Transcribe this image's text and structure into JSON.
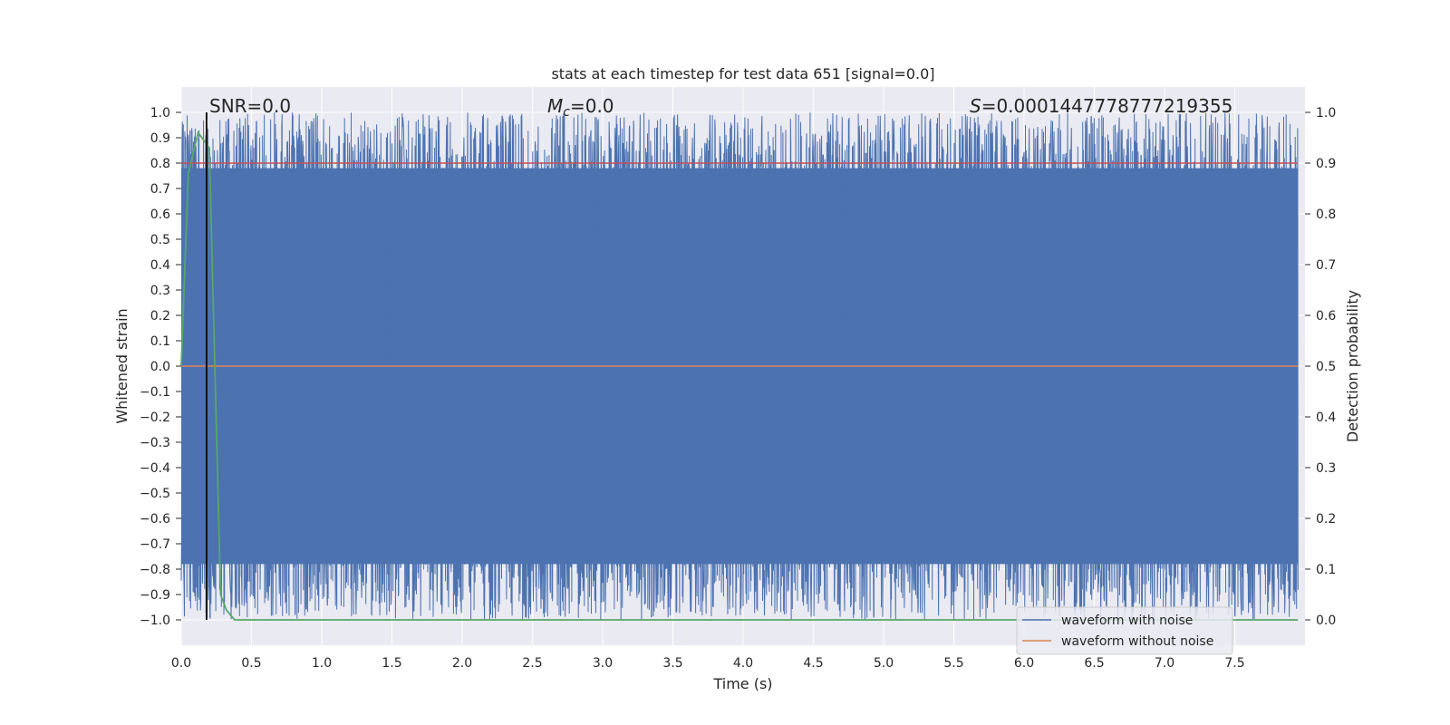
{
  "chart_data": {
    "type": "line",
    "title": "stats at each timestep for test data 651 [signal=0.0]",
    "xlabel": "Time (s)",
    "ylabel_left": "Whitened strain",
    "ylabel_right": "Detection probability",
    "xlim": [
      0.0,
      8.0
    ],
    "ylim_left": [
      -1.1,
      1.1
    ],
    "ylim_right": [
      -0.05,
      1.05
    ],
    "x_ticks": [
      0.0,
      0.5,
      1.0,
      1.5,
      2.0,
      2.5,
      3.0,
      3.5,
      4.0,
      4.5,
      5.0,
      5.5,
      6.0,
      6.5,
      7.0,
      7.5
    ],
    "x_tick_labels": [
      "0.0",
      "0.5",
      "1.0",
      "1.5",
      "2.0",
      "2.5",
      "3.0",
      "3.5",
      "4.0",
      "4.5",
      "5.0",
      "5.5",
      "6.0",
      "6.5",
      "7.0",
      "7.5"
    ],
    "y_left_ticks": [
      -1.0,
      -0.9,
      -0.8,
      -0.7,
      -0.6,
      -0.5,
      -0.4,
      -0.3,
      -0.2,
      -0.1,
      0.0,
      0.1,
      0.2,
      0.3,
      0.4,
      0.5,
      0.6,
      0.7,
      0.8,
      0.9,
      1.0
    ],
    "y_left_tick_labels": [
      "−1.0",
      "−0.9",
      "−0.8",
      "−0.7",
      "−0.6",
      "−0.5",
      "−0.4",
      "−0.3",
      "−0.2",
      "−0.1",
      "0.0",
      "0.1",
      "0.2",
      "0.3",
      "0.4",
      "0.5",
      "0.6",
      "0.7",
      "0.8",
      "0.9",
      "1.0"
    ],
    "y_right_ticks": [
      0.0,
      0.1,
      0.2,
      0.3,
      0.4,
      0.5,
      0.6,
      0.7,
      0.8,
      0.9,
      1.0
    ],
    "y_right_tick_labels": [
      "0.0",
      "0.1",
      "0.2",
      "0.3",
      "0.4",
      "0.5",
      "0.6",
      "0.7",
      "0.8",
      "0.9",
      "1.0"
    ],
    "grid": true,
    "legend_position": "bottom-right",
    "annotations": {
      "snr": "SNR=0.0",
      "mc_symbol": "M",
      "mc_sub": "c",
      "mc_value": "=0.0",
      "s_symbol": "S",
      "s_value": "=0.0001447778777219355"
    },
    "series": [
      {
        "name": "waveform with noise",
        "axis": "left",
        "color": "#4c72b0",
        "description_range": [
          -1.0,
          1.0
        ]
      },
      {
        "name": "waveform without noise",
        "axis": "left",
        "color": "#dd8452",
        "constant_value": 0.0
      },
      {
        "axis": "right",
        "color": "#55a868",
        "x": [
          0.0,
          0.05,
          0.12,
          0.2,
          0.28,
          0.32,
          0.38,
          7.95
        ],
        "values": [
          0.5,
          0.88,
          0.96,
          0.93,
          0.05,
          0.02,
          0.0,
          0.0
        ]
      }
    ],
    "hlines_right": [
      {
        "value": 0.9,
        "color": "#c44e52"
      }
    ],
    "vlines": [
      {
        "x": 0.18,
        "color": "#000000"
      }
    ],
    "background_color": "#eaeaf2"
  }
}
